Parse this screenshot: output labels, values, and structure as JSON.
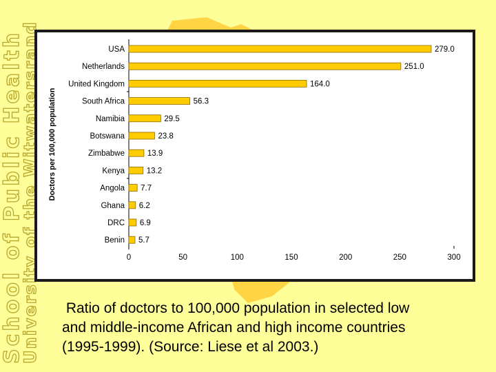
{
  "side_text": {
    "line1": "School of Public Health",
    "line2": "University of the Witwatersrand"
  },
  "caption": {
    "line1": " Ratio of doctors to 100,000 population in selected low",
    "line2": "and middle-income African and high income countries",
    "line3": "(1995-1999). (Source: Liese et al 2003.)"
  },
  "colors": {
    "bar": "#FFCC00",
    "bar_stroke": "#8C6A00",
    "background": "#FFFF99",
    "decor_shape": "#FFB300"
  },
  "chart_data": {
    "type": "bar",
    "orientation": "horizontal",
    "title": "",
    "xlabel": "",
    "ylabel": "Doctors per 100,000 population",
    "xlim": [
      0,
      300
    ],
    "ticks": [
      0,
      50,
      100,
      150,
      200,
      250,
      300
    ],
    "tick_labels": [
      "0",
      "50",
      "100",
      "150",
      "200",
      "250",
      "300"
    ],
    "grid": false,
    "categories": [
      "USA",
      "Netherlands",
      "United Kingdom",
      "South Africa",
      "Namibia",
      "Botswana",
      "Zimbabwe",
      "Kenya",
      "Angola",
      "Ghana",
      "DRC",
      "Benin"
    ],
    "values": [
      279.0,
      251.0,
      164.0,
      56.3,
      29.5,
      23.8,
      13.9,
      13.2,
      7.7,
      6.2,
      6.9,
      5.7
    ],
    "value_labels": [
      "279.0",
      "251.0",
      "164.0",
      "56.3",
      "29.5",
      "23.8",
      "13.9",
      "13.2",
      "7.7",
      "6.2",
      "6.9",
      "5.7"
    ]
  }
}
